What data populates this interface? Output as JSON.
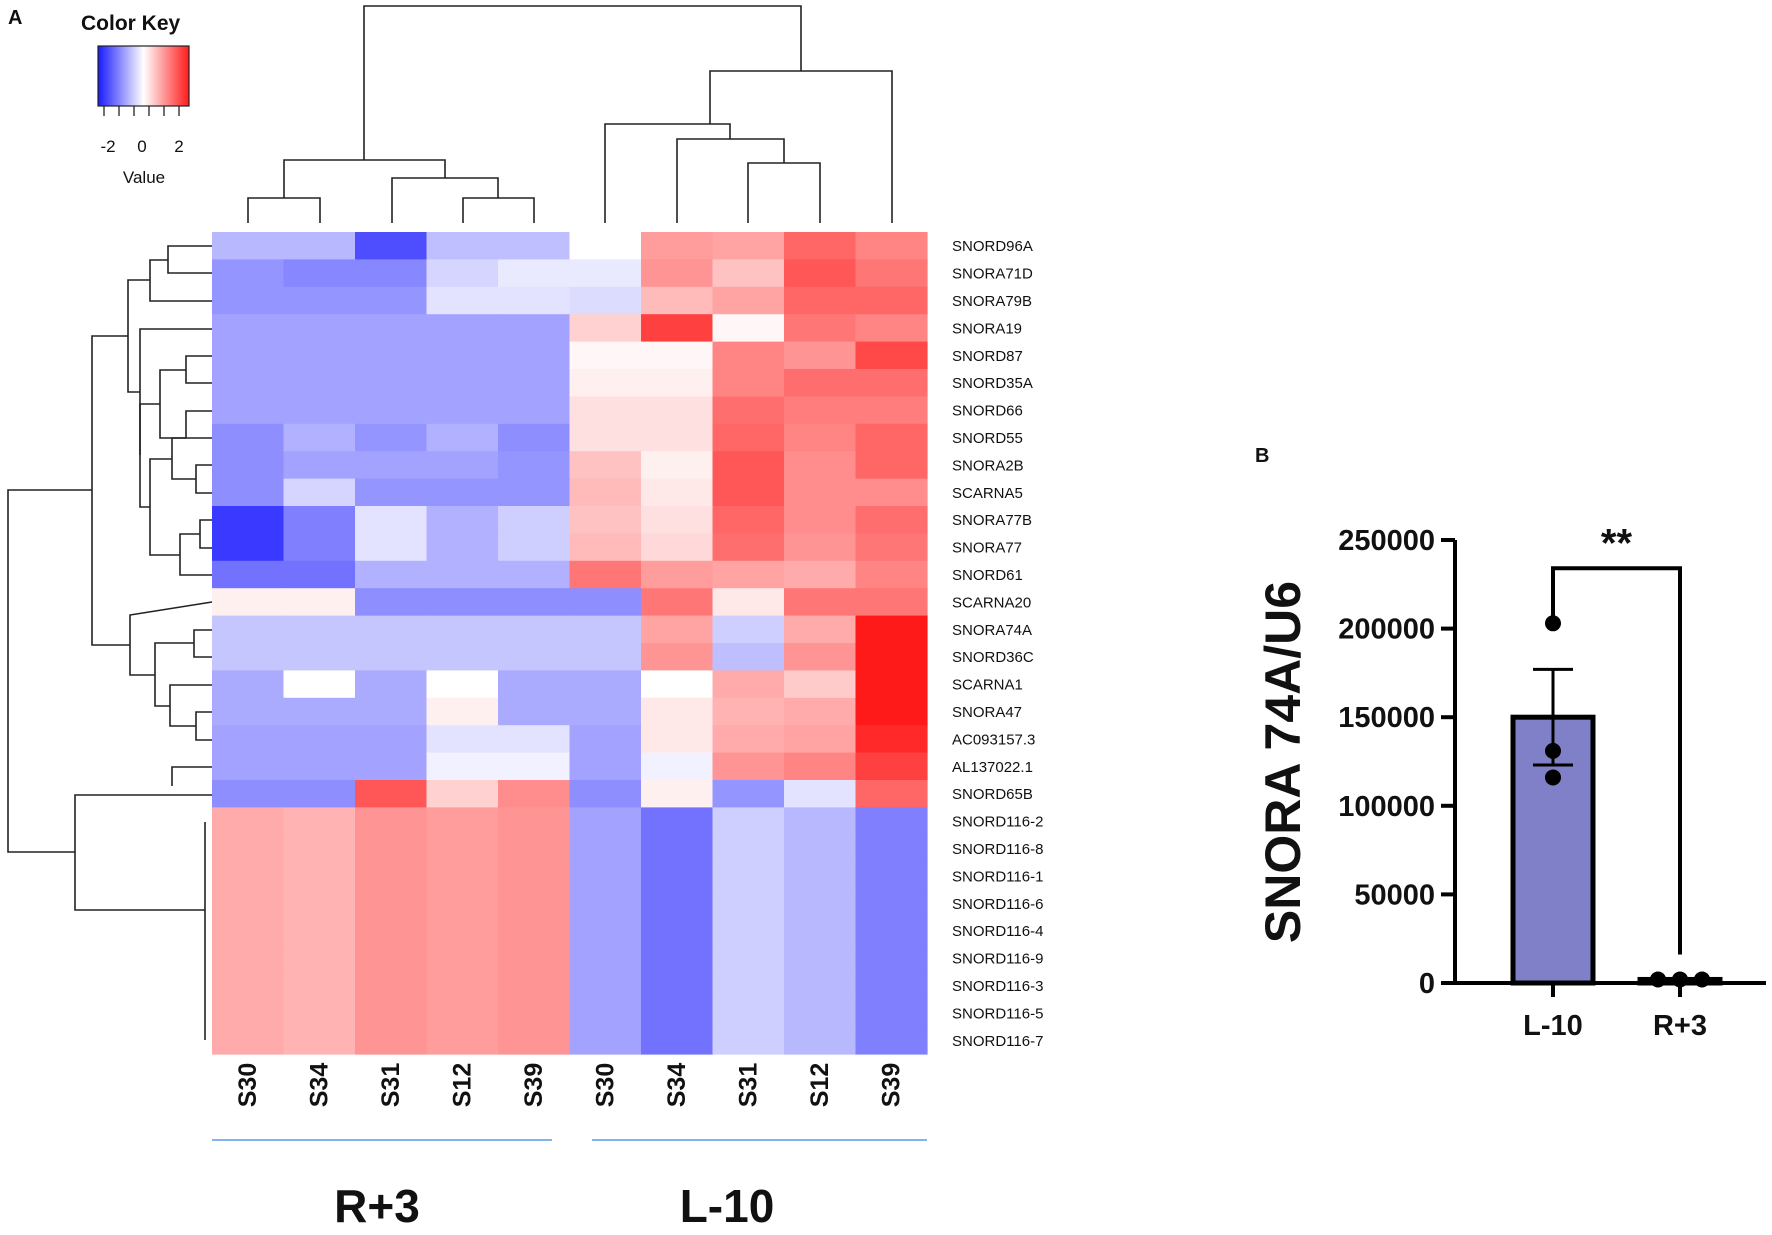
{
  "panel_a": {
    "label": "A",
    "color_key": {
      "title": "Color Key",
      "ticks": [
        "-2",
        "0",
        "2"
      ],
      "xlabel": "Value"
    },
    "group_labels": [
      "R+3",
      "L-10"
    ]
  },
  "panel_b": {
    "label": "B",
    "significance": "**"
  },
  "colors": {
    "low": "#2b2bff",
    "mid": "#ffffff",
    "high": "#ff1a1a",
    "bar_fill": "#8080c8",
    "group_line": "#5a9be8"
  },
  "chart_data": [
    {
      "type": "heatmap",
      "title": "",
      "value_range": [
        -3,
        3
      ],
      "rows": [
        "SNORD96A",
        "SNORA71D",
        "SNORA79B",
        "SNORA19",
        "SNORD87",
        "SNORD35A",
        "SNORD66",
        "SNORD55",
        "SNORA2B",
        "SCARNA5",
        "SNORA77B",
        "SNORA77",
        "SNORD61",
        "SCARNA20",
        "SNORA74A",
        "SNORD36C",
        "SCARNA1",
        "SNORA47",
        "AC093157.3",
        "AL137022.1",
        "SNORD65B",
        "SNORD116-2",
        "SNORD116-8",
        "SNORD116-1",
        "SNORD116-6",
        "SNORD116-4",
        "SNORD116-9",
        "SNORD116-3",
        "SNORD116-5",
        "SNORD116-7"
      ],
      "columns": [
        "S30",
        "S34",
        "S31",
        "S12",
        "S39",
        "S30",
        "S34",
        "S31",
        "S12",
        "S39"
      ],
      "column_groups": [
        "R+3",
        "R+3",
        "R+3",
        "R+3",
        "R+3",
        "L-10",
        "L-10",
        "L-10",
        "L-10",
        "L-10"
      ],
      "values": [
        [
          -1.0,
          -1.0,
          -2.5,
          -0.9,
          -0.9,
          0.0,
          1.3,
          1.2,
          2.0,
          1.6
        ],
        [
          -1.5,
          -1.7,
          -1.7,
          -0.6,
          -0.3,
          -0.3,
          1.4,
          0.8,
          2.2,
          1.8
        ],
        [
          -1.5,
          -1.5,
          -1.5,
          -0.4,
          -0.4,
          -0.5,
          0.9,
          1.2,
          2.0,
          2.0
        ],
        [
          -1.3,
          -1.3,
          -1.3,
          -1.3,
          -1.3,
          0.6,
          2.5,
          0.1,
          1.8,
          1.6
        ],
        [
          -1.3,
          -1.3,
          -1.3,
          -1.3,
          -1.3,
          0.1,
          0.1,
          1.6,
          1.4,
          2.4
        ],
        [
          -1.3,
          -1.3,
          -1.3,
          -1.3,
          -1.3,
          0.2,
          0.2,
          1.6,
          1.9,
          1.9
        ],
        [
          -1.3,
          -1.3,
          -1.3,
          -1.3,
          -1.3,
          0.4,
          0.4,
          1.9,
          1.7,
          1.7
        ],
        [
          -1.6,
          -1.1,
          -1.5,
          -1.1,
          -1.6,
          0.4,
          0.4,
          2.0,
          1.6,
          2.0
        ],
        [
          -1.6,
          -1.3,
          -1.3,
          -1.3,
          -1.5,
          0.8,
          0.2,
          2.2,
          1.5,
          2.0
        ],
        [
          -1.6,
          -0.6,
          -1.5,
          -1.5,
          -1.5,
          0.9,
          0.3,
          2.2,
          1.5,
          1.5
        ],
        [
          -2.8,
          -1.8,
          -0.4,
          -1.1,
          -0.7,
          0.8,
          0.4,
          2.0,
          1.5,
          1.9
        ],
        [
          -2.8,
          -1.8,
          -0.4,
          -1.1,
          -0.7,
          0.9,
          0.5,
          1.9,
          1.4,
          1.8
        ],
        [
          -2.0,
          -2.0,
          -1.1,
          -1.1,
          -1.1,
          1.8,
          1.3,
          1.2,
          1.1,
          1.6
        ],
        [
          0.2,
          0.2,
          -1.6,
          -1.6,
          -1.6,
          -1.6,
          1.8,
          0.3,
          1.8,
          1.8
        ],
        [
          -0.8,
          -0.8,
          -0.8,
          -0.8,
          -0.8,
          -0.8,
          1.2,
          -0.7,
          1.1,
          3.0
        ],
        [
          -0.8,
          -0.8,
          -0.8,
          -0.8,
          -0.8,
          -0.8,
          1.4,
          -0.9,
          1.4,
          3.0
        ],
        [
          -1.2,
          0.0,
          -1.2,
          0.0,
          -1.2,
          -1.2,
          0.0,
          1.1,
          0.7,
          3.0
        ],
        [
          -1.2,
          -1.2,
          -1.2,
          0.2,
          -1.2,
          -1.2,
          0.3,
          1.0,
          1.1,
          3.0
        ],
        [
          -1.3,
          -1.3,
          -1.3,
          -0.4,
          -0.4,
          -1.3,
          0.3,
          1.1,
          1.2,
          2.8
        ],
        [
          -1.3,
          -1.3,
          -1.3,
          -0.2,
          -0.2,
          -1.3,
          -0.2,
          1.4,
          1.6,
          2.5
        ],
        [
          -1.6,
          -1.6,
          2.2,
          0.6,
          1.5,
          -1.6,
          0.2,
          -1.5,
          -0.4,
          2.0
        ],
        [
          1.1,
          1.0,
          1.4,
          1.3,
          1.4,
          -1.3,
          -2.0,
          -0.7,
          -1.0,
          -1.8
        ],
        [
          1.1,
          1.0,
          1.4,
          1.3,
          1.4,
          -1.3,
          -2.0,
          -0.7,
          -1.0,
          -1.8
        ],
        [
          1.1,
          1.0,
          1.4,
          1.3,
          1.4,
          -1.3,
          -2.0,
          -0.7,
          -1.0,
          -1.8
        ],
        [
          1.1,
          1.0,
          1.4,
          1.3,
          1.4,
          -1.3,
          -2.0,
          -0.7,
          -1.0,
          -1.8
        ],
        [
          1.1,
          1.0,
          1.4,
          1.3,
          1.4,
          -1.3,
          -2.0,
          -0.7,
          -1.0,
          -1.8
        ],
        [
          1.1,
          1.0,
          1.4,
          1.3,
          1.4,
          -1.3,
          -2.0,
          -0.7,
          -1.0,
          -1.8
        ],
        [
          1.1,
          1.0,
          1.4,
          1.3,
          1.4,
          -1.3,
          -2.0,
          -0.7,
          -1.0,
          -1.8
        ],
        [
          1.1,
          1.0,
          1.4,
          1.3,
          1.4,
          -1.3,
          -2.0,
          -0.7,
          -1.0,
          -1.8
        ],
        [
          1.1,
          1.0,
          1.4,
          1.3,
          1.4,
          -1.3,
          -2.0,
          -0.7,
          -1.0,
          -1.8
        ]
      ]
    },
    {
      "type": "bar",
      "title": "",
      "xlabel": "",
      "ylabel": "SNORA 74A/U6",
      "categories": [
        "L-10",
        "R+3"
      ],
      "values": [
        150000,
        2000
      ],
      "error": [
        27000,
        500
      ],
      "points": [
        [
          203000,
          131000,
          116000
        ],
        [
          2000,
          2000,
          2000
        ]
      ],
      "ylim": [
        0,
        250000
      ],
      "yticks": [
        "0",
        "50000",
        "100000",
        "150000",
        "200000",
        "250000"
      ],
      "ytick_values": [
        0,
        50000,
        100000,
        150000,
        200000,
        250000
      ]
    }
  ]
}
